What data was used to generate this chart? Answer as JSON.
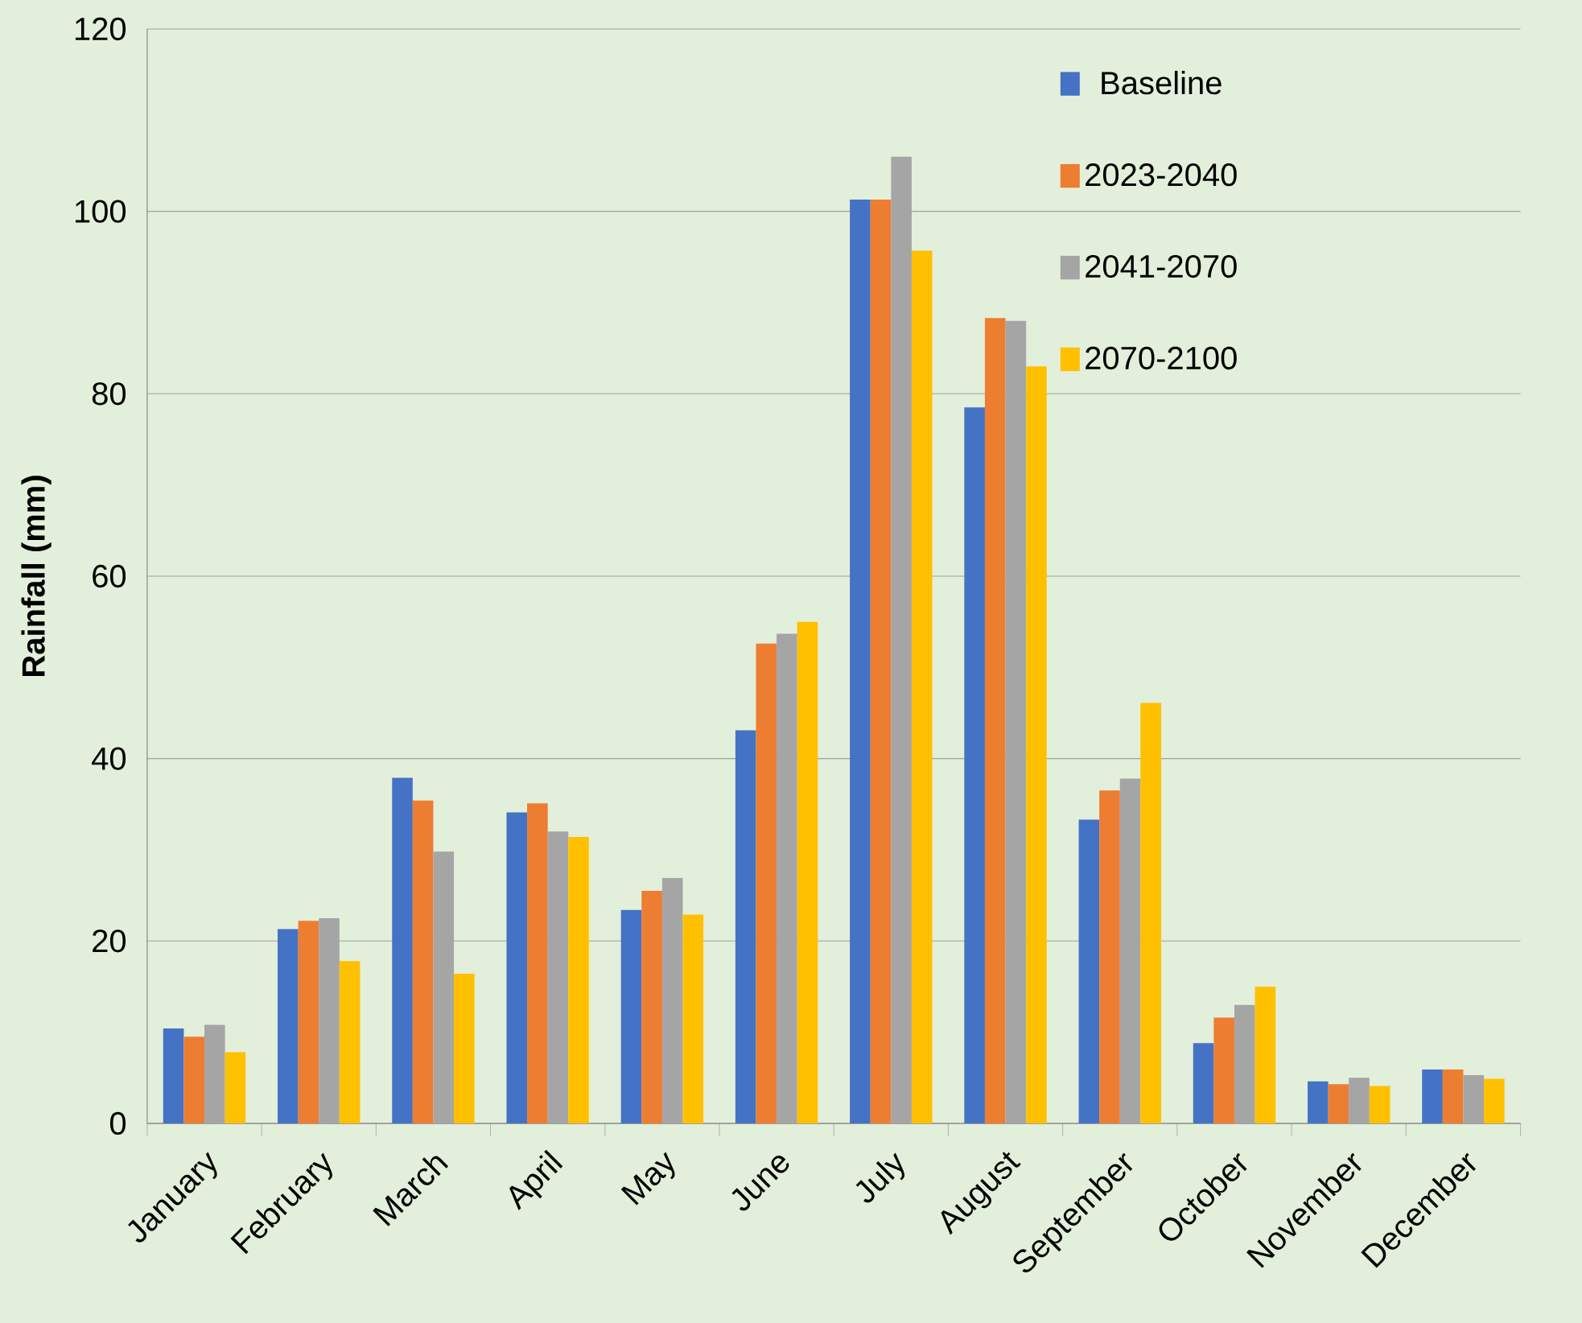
{
  "chart_data": {
    "type": "bar",
    "ylabel": "Rainfall (mm)",
    "categories": [
      "January",
      "February",
      "March",
      "April",
      "May",
      "June",
      "July",
      "August",
      "September",
      "October",
      "November",
      "December"
    ],
    "series": [
      {
        "name": "Baseline",
        "color": "#4472c4",
        "values": [
          10.4,
          21.3,
          37.9,
          34.1,
          23.4,
          43.1,
          101.3,
          78.5,
          33.3,
          8.8,
          4.6,
          5.9
        ]
      },
      {
        "name": "2023-2040",
        "color": "#ed7d31",
        "values": [
          9.5,
          22.2,
          35.4,
          35.1,
          25.5,
          52.6,
          101.3,
          88.3,
          36.5,
          11.6,
          4.3,
          5.9
        ]
      },
      {
        "name": "2041-2070",
        "color": "#a5a5a5",
        "values": [
          10.8,
          22.5,
          29.8,
          32.0,
          26.9,
          53.7,
          106.0,
          88.0,
          37.8,
          13.0,
          5.0,
          5.3
        ]
      },
      {
        "name": "2070-2100",
        "color": "#ffc000",
        "values": [
          7.8,
          17.8,
          16.4,
          31.4,
          22.9,
          55.0,
          95.7,
          83.0,
          46.1,
          15.0,
          4.1,
          4.9
        ]
      }
    ],
    "ylim": [
      0,
      120
    ],
    "yticks": [
      0,
      20,
      40,
      60,
      80,
      100,
      120
    ],
    "grid": "y",
    "legend": "top right"
  }
}
